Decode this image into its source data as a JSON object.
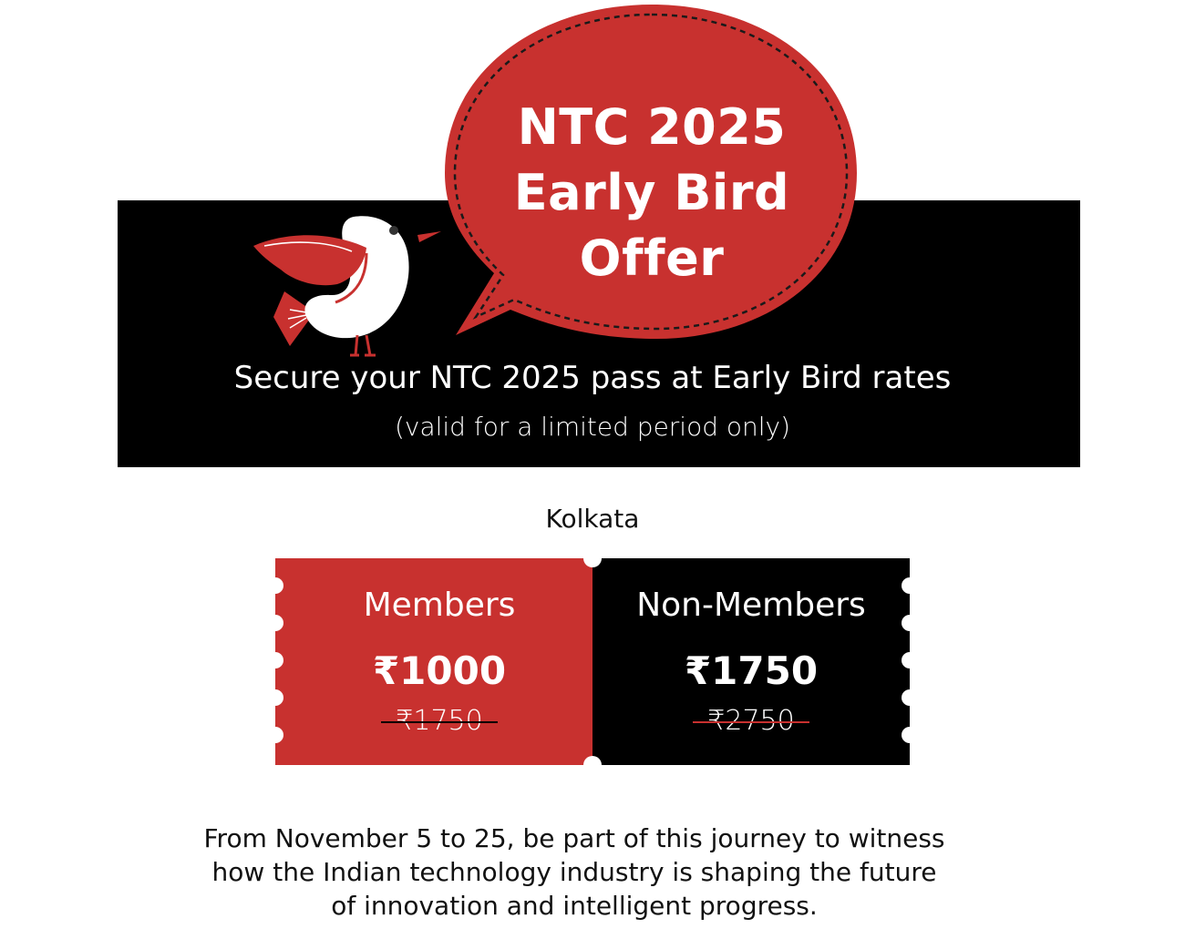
{
  "colors": {
    "accent": "#c8312f",
    "banner": "#000000",
    "text": "#111111",
    "light": "#ffffff"
  },
  "bubble": {
    "line1": "NTC 2025",
    "line2": "Early Bird",
    "line3": "Offer"
  },
  "banner": {
    "tagline": "Secure your NTC 2025 pass at Early Bird rates",
    "validity": "(valid for a limited period only)"
  },
  "mascot": {
    "icon": "bird-icon"
  },
  "city": "Kolkata",
  "tickets": [
    {
      "label": "Members",
      "price": "₹1000",
      "old_price": "₹1750"
    },
    {
      "label": "Non-Members",
      "price": "₹1750",
      "old_price": "₹2750"
    }
  ],
  "footer": {
    "line1": "From November 5 to 25, be part of this journey to witness",
    "line2": "how the Indian technology industry is shaping the future",
    "line3": "of innovation and intelligent progress."
  }
}
